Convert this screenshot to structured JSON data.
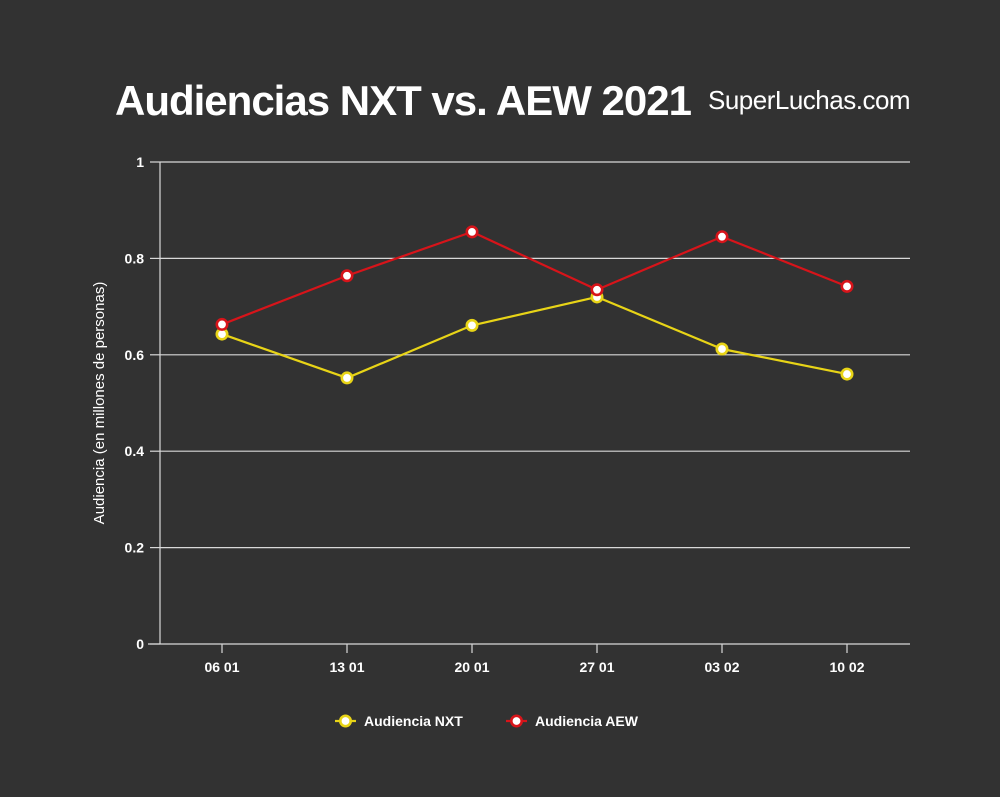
{
  "brand": "SuperLuchas.com",
  "chart_data": {
    "type": "line",
    "title": "Audiencias NXT vs. AEW 2021",
    "xlabel": "",
    "ylabel": "Audiencia (en millones de personas)",
    "categories": [
      "06 01",
      "13 01",
      "20 01",
      "27 01",
      "03 02",
      "10 02"
    ],
    "ylim": [
      0,
      1
    ],
    "yticks": [
      0,
      0.2,
      0.4,
      0.6,
      0.8,
      1
    ],
    "ytick_labels": [
      "0",
      "0.2",
      "0.4",
      "0.6",
      "0.8",
      "1"
    ],
    "grid": true,
    "legend_position": "bottom-center",
    "background": "#323232",
    "series": [
      {
        "name": "Audiencia NXT",
        "color": "#e8d417",
        "values": [
          0.643,
          0.552,
          0.661,
          0.72,
          0.612,
          0.56
        ]
      },
      {
        "name": "Audiencia AEW",
        "color": "#d7141a",
        "values": [
          0.663,
          0.764,
          0.855,
          0.735,
          0.845,
          0.742
        ]
      }
    ]
  }
}
